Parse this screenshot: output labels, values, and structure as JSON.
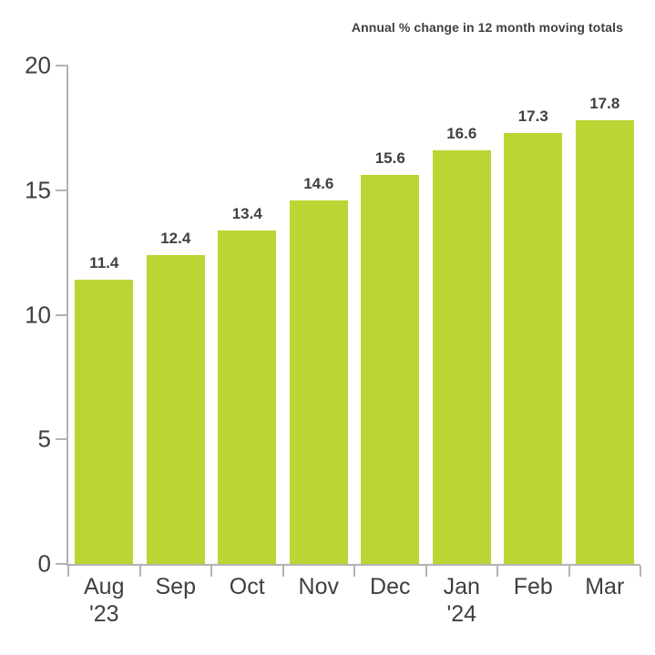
{
  "title": "Annual % change in 12 month moving totals",
  "colors": {
    "bar": "#bcd534",
    "axis": "#b3b3b3",
    "text": "#404040"
  },
  "chart_data": {
    "type": "bar",
    "title": "Annual % change in 12 month moving totals",
    "categories": [
      "Aug",
      "Sep",
      "Oct",
      "Nov",
      "Dec",
      "Jan",
      "Feb",
      "Mar"
    ],
    "category_sublabels": [
      "'23",
      "",
      "",
      "",
      "",
      "'24",
      "",
      ""
    ],
    "values": [
      11.4,
      12.4,
      13.4,
      14.6,
      15.6,
      16.6,
      17.3,
      17.8
    ],
    "value_labels": [
      "11.4",
      "12.4",
      "13.4",
      "14.6",
      "15.6",
      "16.6",
      "17.3",
      "17.8"
    ],
    "xlabel": "",
    "ylabel": "",
    "ylim": [
      0,
      20
    ],
    "yticks": [
      0,
      5,
      10,
      15,
      20
    ],
    "grid": false,
    "legend": false,
    "bar_color": "#bcd534"
  }
}
